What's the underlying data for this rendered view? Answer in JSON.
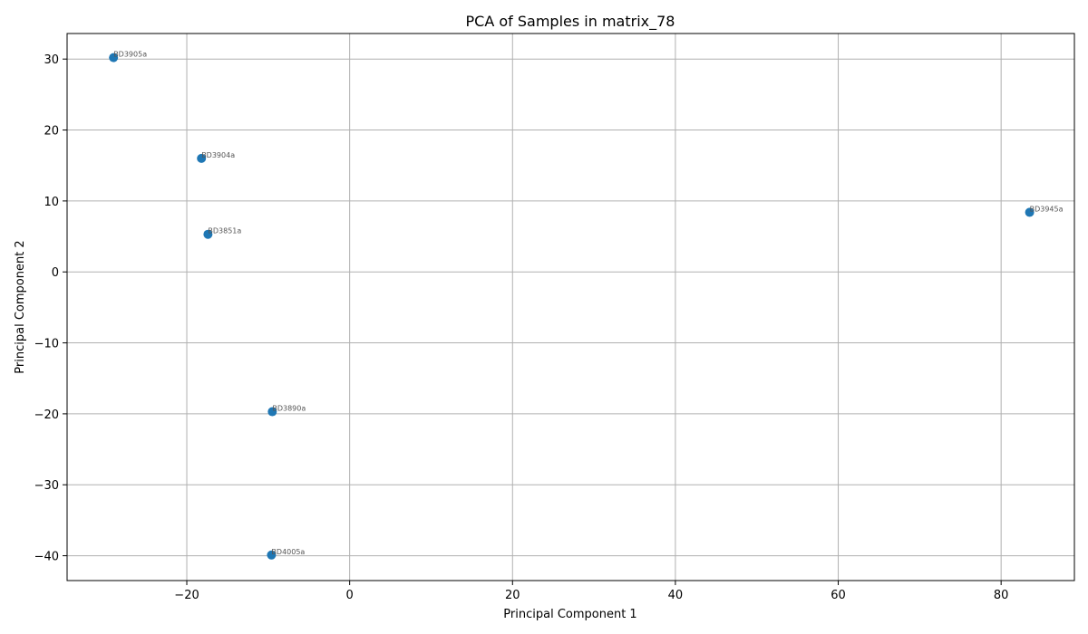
{
  "chart_data": {
    "type": "scatter",
    "title": "PCA of Samples in matrix_78",
    "xlabel": "Principal Component 1",
    "ylabel": "Principal Component 2",
    "xlim": [
      -34.7,
      89.0
    ],
    "ylim": [
      -43.5,
      33.6
    ],
    "xticks": [
      -20,
      0,
      20,
      40,
      60,
      80
    ],
    "yticks": [
      -40,
      -30,
      -20,
      -10,
      0,
      10,
      20,
      30
    ],
    "grid": true,
    "marker_color": "#1f77b4",
    "points": [
      {
        "label": "BD3905a",
        "x": -29.0,
        "y": 30.2
      },
      {
        "label": "BD3904a",
        "x": -18.2,
        "y": 16.0
      },
      {
        "label": "BD3851a",
        "x": -17.4,
        "y": 5.3
      },
      {
        "label": "BD3945a",
        "x": 83.5,
        "y": 8.4
      },
      {
        "label": "BD3890a",
        "x": -9.5,
        "y": -19.7
      },
      {
        "label": "BD4005a",
        "x": -9.6,
        "y": -39.9
      }
    ]
  }
}
